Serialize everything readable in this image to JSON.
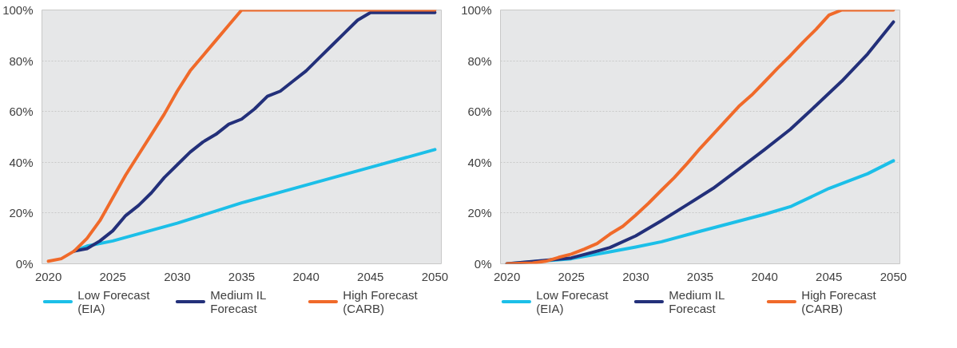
{
  "chart_data": [
    {
      "type": "line",
      "legend": "bottom",
      "grid": "y",
      "xlim": [
        2019.5,
        2050.5
      ],
      "ylim": [
        0,
        100
      ],
      "xticks": [
        2020,
        2025,
        2030,
        2035,
        2040,
        2045,
        2050
      ],
      "yticks": [
        {
          "value": 0,
          "label": "0%"
        },
        {
          "value": 20,
          "label": "20%"
        },
        {
          "value": 40,
          "label": "40%"
        },
        {
          "value": 60,
          "label": "60%"
        },
        {
          "value": 80,
          "label": "80%"
        },
        {
          "value": 100,
          "label": "100%"
        }
      ],
      "series": [
        {
          "name": "Low Forecast\n(EIA)",
          "color": "#1cbfe8",
          "x": [
            2022,
            2023,
            2025,
            2030,
            2035,
            2040,
            2045,
            2050
          ],
          "values": [
            5,
            7,
            9,
            16,
            24,
            31,
            38,
            45
          ]
        },
        {
          "name": "Medium IL\nForecast",
          "color": "#23307a",
          "x": [
            2022,
            2023,
            2024,
            2025,
            2026,
            2027,
            2028,
            2029,
            2030,
            2031,
            2032,
            2033,
            2034,
            2035,
            2036,
            2037,
            2038,
            2039,
            2040,
            2041,
            2042,
            2043,
            2044,
            2045,
            2050
          ],
          "values": [
            5,
            6,
            9,
            13,
            19,
            23,
            28,
            34,
            39,
            44,
            48,
            51,
            55,
            57,
            61,
            66,
            68,
            72,
            76,
            81,
            86,
            91,
            96,
            99,
            99
          ]
        },
        {
          "name": "High Forecast\n(CARB)",
          "color": "#f06a2a",
          "x": [
            2020,
            2021,
            2022,
            2023,
            2024,
            2025,
            2026,
            2027,
            2028,
            2029,
            2030,
            2031,
            2032,
            2033,
            2034,
            2035,
            2050
          ],
          "values": [
            1,
            2,
            5,
            10,
            17,
            26,
            35,
            43,
            51,
            59,
            68,
            76,
            82,
            88,
            94,
            100,
            100
          ]
        }
      ]
    },
    {
      "type": "line",
      "legend": "bottom",
      "grid": "y",
      "xlim": [
        2019.5,
        2050.5
      ],
      "ylim": [
        0,
        100
      ],
      "xticks": [
        2020,
        2025,
        2030,
        2035,
        2040,
        2045,
        2050
      ],
      "yticks": [
        {
          "value": 0,
          "label": "0%"
        },
        {
          "value": 20,
          "label": "20%"
        },
        {
          "value": 40,
          "label": "40%"
        },
        {
          "value": 60,
          "label": "60%"
        },
        {
          "value": 80,
          "label": "80%"
        },
        {
          "value": 100,
          "label": "100%"
        }
      ],
      "series": [
        {
          "name": "Low Forecast\n(EIA)",
          "color": "#1cbfe8",
          "x": [
            2020,
            2025,
            2028,
            2030,
            2032,
            2035,
            2040,
            2042,
            2045,
            2048,
            2050
          ],
          "values": [
            0,
            2,
            4.7,
            6.6,
            8.7,
            12.8,
            19.5,
            22.5,
            29.7,
            35.5,
            40.6
          ]
        },
        {
          "name": "Medium IL\nForecast",
          "color": "#23307a",
          "x": [
            2020,
            2025,
            2027,
            2028,
            2030,
            2032,
            2034,
            2036,
            2038,
            2040,
            2042,
            2044,
            2046,
            2048,
            2050
          ],
          "values": [
            0,
            2.3,
            5,
            6.4,
            11,
            17,
            23.3,
            29.7,
            37.3,
            45,
            53,
            62.4,
            72,
            82.7,
            95.3
          ]
        },
        {
          "name": "High Forecast\n(CARB)",
          "color": "#f06a2a",
          "x": [
            2020,
            2022,
            2023,
            2024,
            2025,
            2026,
            2027,
            2028,
            2029,
            2030,
            2031,
            2032,
            2033,
            2034,
            2035,
            2036,
            2037,
            2038,
            2039,
            2040,
            2041,
            2042,
            2043,
            2044,
            2045,
            2046,
            2050
          ],
          "values": [
            0,
            0.3,
            1,
            2.5,
            3.8,
            5.8,
            8,
            11.7,
            14.8,
            19.2,
            23.9,
            29,
            34,
            39.6,
            45.5,
            51,
            56.5,
            62,
            66.5,
            71.7,
            77,
            82,
            87.4,
            92.4,
            98,
            100,
            100
          ]
        }
      ]
    }
  ]
}
